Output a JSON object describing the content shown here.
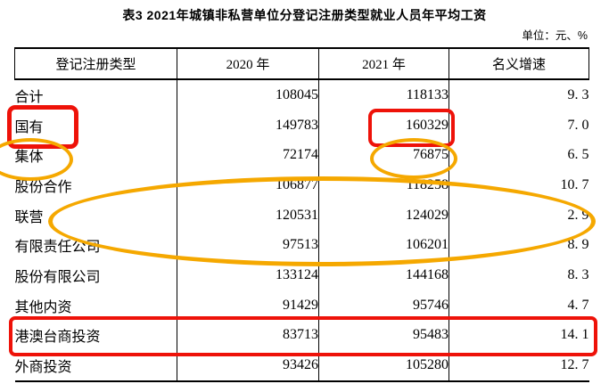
{
  "title": "表3  2021年城镇非私营单位分登记注册类型就业人员年平均工资",
  "unit_note": "单位：元、%",
  "table": {
    "headers": [
      "登记注册类型",
      "2020 年",
      "2021 年",
      "名义增速"
    ],
    "rows": [
      {
        "type": "合计",
        "y2020": "108045",
        "y2021": "118133",
        "growth": "9. 3"
      },
      {
        "type": "国有",
        "y2020": "149783",
        "y2021": "160329",
        "growth": "7. 0"
      },
      {
        "type": "集体",
        "y2020": "72174",
        "y2021": "76875",
        "growth": "6. 5"
      },
      {
        "type": "股份合作",
        "y2020": "106877",
        "y2021": "118258",
        "growth": "10. 7"
      },
      {
        "type": "联营",
        "y2020": "120531",
        "y2021": "124029",
        "growth": "2. 9"
      },
      {
        "type": "有限责任公司",
        "y2020": "97513",
        "y2021": "106201",
        "growth": "8. 9"
      },
      {
        "type": "股份有限公司",
        "y2020": "133124",
        "y2021": "144168",
        "growth": "8. 3"
      },
      {
        "type": "其他内资",
        "y2020": "91429",
        "y2021": "95746",
        "growth": "4. 7"
      },
      {
        "type": "港澳台商投资",
        "y2020": "83713",
        "y2021": "95483",
        "growth": "14. 1"
      },
      {
        "type": "外商投资",
        "y2020": "93426",
        "y2021": "105280",
        "growth": "12. 7"
      }
    ]
  },
  "chart_data": {
    "type": "table",
    "title": "表3  2021年城镇非私营单位分登记注册类型就业人员年平均工资",
    "unit": "元、%",
    "columns": [
      "登记注册类型",
      "2020年",
      "2021年",
      "名义增速"
    ],
    "categories": [
      "合计",
      "国有",
      "集体",
      "股份合作",
      "联营",
      "有限责任公司",
      "股份有限公司",
      "其他内资",
      "港澳台商投资",
      "外商投资"
    ],
    "series": [
      {
        "name": "2020年",
        "values": [
          108045,
          149783,
          72174,
          106877,
          120531,
          97513,
          133124,
          91429,
          83713,
          93426
        ]
      },
      {
        "name": "2021年",
        "values": [
          118133,
          160329,
          76875,
          118258,
          124029,
          106201,
          144168,
          95746,
          95483,
          105280
        ]
      },
      {
        "name": "名义增速",
        "values": [
          9.3,
          7.0,
          6.5,
          10.7,
          2.9,
          8.9,
          8.3,
          4.7,
          14.1,
          12.7
        ]
      }
    ]
  },
  "annotations": {
    "red_color": "#ee1209",
    "orange_color": "#f5a800",
    "red_boxes": [
      "国有-label",
      "160329-value",
      "港澳台商投资-row"
    ],
    "orange_ellipses": [
      "集体-label",
      "76875-value",
      "联营-row"
    ]
  }
}
